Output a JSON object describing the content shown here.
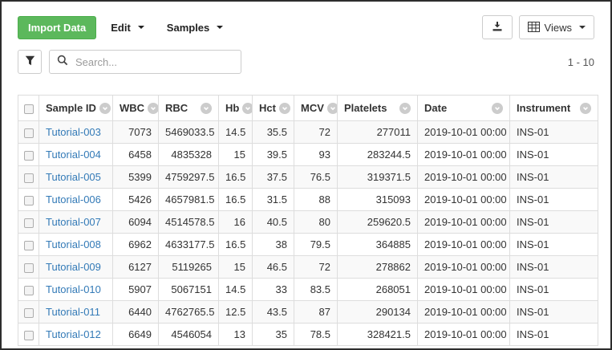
{
  "toolbar": {
    "import_button": "Import Data",
    "edit_button": "Edit",
    "samples_button": "Samples",
    "views_button": "Views"
  },
  "search": {
    "placeholder": "Search..."
  },
  "pagination": "1 - 10",
  "table": {
    "columns": [
      {
        "key": "select",
        "label": "",
        "type": "checkbox"
      },
      {
        "key": "sample-id",
        "label": "Sample ID",
        "align": "left"
      },
      {
        "key": "wbc",
        "label": "WBC",
        "align": "right"
      },
      {
        "key": "rbc",
        "label": "RBC",
        "align": "right"
      },
      {
        "key": "hb",
        "label": "Hb",
        "align": "right"
      },
      {
        "key": "hct",
        "label": "Hct",
        "align": "right"
      },
      {
        "key": "mcv",
        "label": "MCV",
        "align": "right"
      },
      {
        "key": "platelets",
        "label": "Platelets",
        "align": "right"
      },
      {
        "key": "date",
        "label": "Date",
        "align": "left"
      },
      {
        "key": "instrument",
        "label": "Instrument",
        "align": "left"
      }
    ],
    "rows": [
      [
        "Tutorial-003",
        "7073",
        "5469033.5",
        "14.5",
        "35.5",
        "72",
        "277011",
        "2019-10-01 00:00",
        "INS-01"
      ],
      [
        "Tutorial-004",
        "6458",
        "4835328",
        "15",
        "39.5",
        "93",
        "283244.5",
        "2019-10-01 00:00",
        "INS-01"
      ],
      [
        "Tutorial-005",
        "5399",
        "4759297.5",
        "16.5",
        "37.5",
        "76.5",
        "319371.5",
        "2019-10-01 00:00",
        "INS-01"
      ],
      [
        "Tutorial-006",
        "5426",
        "4657981.5",
        "16.5",
        "31.5",
        "88",
        "315093",
        "2019-10-01 00:00",
        "INS-01"
      ],
      [
        "Tutorial-007",
        "6094",
        "4514578.5",
        "16",
        "40.5",
        "80",
        "259620.5",
        "2019-10-01 00:00",
        "INS-01"
      ],
      [
        "Tutorial-008",
        "6962",
        "4633177.5",
        "16.5",
        "38",
        "79.5",
        "364885",
        "2019-10-01 00:00",
        "INS-01"
      ],
      [
        "Tutorial-009",
        "6127",
        "5119265",
        "15",
        "46.5",
        "72",
        "278862",
        "2019-10-01 00:00",
        "INS-01"
      ],
      [
        "Tutorial-010",
        "5907",
        "5067151",
        "14.5",
        "33",
        "83.5",
        "268051",
        "2019-10-01 00:00",
        "INS-01"
      ],
      [
        "Tutorial-011",
        "6440",
        "4762765.5",
        "12.5",
        "43.5",
        "87",
        "290134",
        "2019-10-01 00:00",
        "INS-01"
      ],
      [
        "Tutorial-012",
        "6649",
        "4546054",
        "13",
        "35",
        "78.5",
        "328421.5",
        "2019-10-01 00:00",
        "INS-01"
      ]
    ]
  },
  "colors": {
    "accent_green": "#5cb85c",
    "accent_green_border": "#4cae4c",
    "link_blue": "#337ab7",
    "row_stripe": "#f9f9f9",
    "grid_border": "#dddddd"
  }
}
